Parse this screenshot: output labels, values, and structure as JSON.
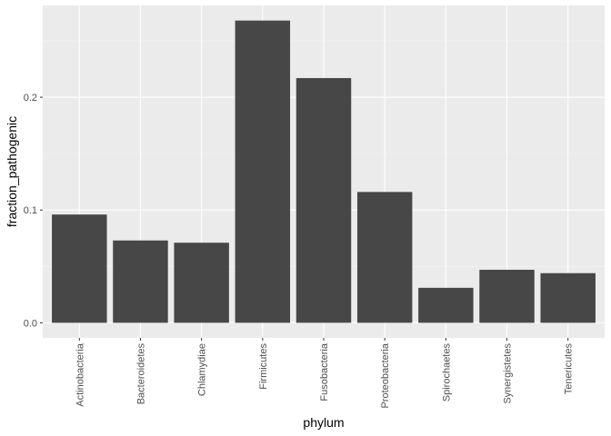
{
  "chart_data": {
    "type": "bar",
    "categories": [
      "Actinobacteria",
      "Bacteroidetes",
      "Chlamydiae",
      "Firmicutes",
      "Fusobacteria",
      "Proteobacteria",
      "Spirochaetes",
      "Synergistetes",
      "Tenericutes"
    ],
    "values": [
      0.096,
      0.073,
      0.071,
      0.268,
      0.217,
      0.116,
      0.031,
      0.047,
      0.044
    ],
    "xlabel": "phylum",
    "ylabel": "fraction_pathogenic",
    "ylim": [
      -0.0134,
      0.2814
    ],
    "yticks": [
      0.0,
      0.1,
      0.2
    ],
    "ytick_labels": [
      "0.0",
      "0.1",
      "0.2"
    ],
    "grid": true,
    "colors": {
      "bar": "#474747",
      "panel": "#ebebeb",
      "grid_major": "#ffffff",
      "grid_minor": "#f5f5f5"
    }
  }
}
